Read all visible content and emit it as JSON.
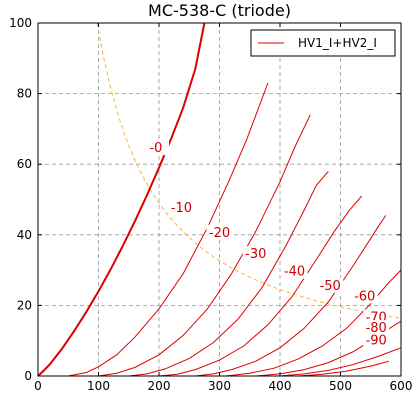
{
  "chart_data": {
    "type": "line",
    "title": "MC-538-C (triode)",
    "xlabel": "",
    "ylabel": "",
    "xlim": [
      0,
      600
    ],
    "ylim": [
      0,
      100
    ],
    "x_ticks": [
      0,
      100,
      200,
      300,
      400,
      500,
      600
    ],
    "y_ticks": [
      0,
      20,
      40,
      60,
      80,
      100
    ],
    "grid": true,
    "legend": {
      "position": "top-right",
      "entries": [
        "HV1_I+HV2_I"
      ]
    },
    "colors": {
      "curves": "#dd0000",
      "dissipation": "#f0b840",
      "grid": "#9a9a9a"
    },
    "series": [
      {
        "label": "-0",
        "label_at": [
          195,
          64
        ],
        "points": [
          [
            0,
            0
          ],
          [
            10,
            1.6
          ],
          [
            20,
            3.4
          ],
          [
            40,
            7.8
          ],
          [
            60,
            12.8
          ],
          [
            80,
            18.2
          ],
          [
            100,
            24
          ],
          [
            120,
            30.2
          ],
          [
            140,
            36.8
          ],
          [
            160,
            43.8
          ],
          [
            180,
            51.2
          ],
          [
            200,
            59
          ],
          [
            220,
            67.2
          ],
          [
            240,
            76
          ],
          [
            260,
            87
          ],
          [
            275,
            100
          ]
        ]
      },
      {
        "label": "-10",
        "label_at": [
          237,
          47
        ],
        "points": [
          [
            50,
            0
          ],
          [
            80,
            1
          ],
          [
            100,
            2.6
          ],
          [
            130,
            6
          ],
          [
            160,
            11
          ],
          [
            200,
            19
          ],
          [
            240,
            29
          ],
          [
            280,
            42
          ],
          [
            315,
            55
          ],
          [
            345,
            67
          ],
          [
            380,
            83
          ]
        ]
      },
      {
        "label": "-20",
        "label_at": [
          300,
          40
        ],
        "points": [
          [
            100,
            0
          ],
          [
            130,
            0.8
          ],
          [
            160,
            2.4
          ],
          [
            200,
            6
          ],
          [
            240,
            11.5
          ],
          [
            280,
            19
          ],
          [
            320,
            29
          ],
          [
            360,
            41
          ],
          [
            400,
            55
          ],
          [
            425,
            65
          ],
          [
            450,
            74
          ]
        ]
      },
      {
        "label": "-30",
        "label_at": [
          360,
          34
        ],
        "points": [
          [
            150,
            0
          ],
          [
            180,
            0.6
          ],
          [
            210,
            2
          ],
          [
            250,
            5
          ],
          [
            290,
            9.5
          ],
          [
            330,
            16
          ],
          [
            370,
            25
          ],
          [
            410,
            37
          ],
          [
            440,
            47
          ],
          [
            460,
            54
          ],
          [
            480,
            58
          ]
        ]
      },
      {
        "label": "-40",
        "label_at": [
          424,
          29
        ],
        "points": [
          [
            200,
            0
          ],
          [
            230,
            0.5
          ],
          [
            260,
            1.8
          ],
          [
            300,
            4.5
          ],
          [
            340,
            8.5
          ],
          [
            380,
            14.5
          ],
          [
            420,
            22.5
          ],
          [
            460,
            33
          ],
          [
            490,
            41
          ],
          [
            515,
            47
          ],
          [
            535,
            51
          ]
        ]
      },
      {
        "label": "-50",
        "label_at": [
          483,
          25
        ],
        "points": [
          [
            260,
            0
          ],
          [
            290,
            0.6
          ],
          [
            320,
            1.8
          ],
          [
            360,
            4.2
          ],
          [
            400,
            8
          ],
          [
            440,
            13.5
          ],
          [
            480,
            21
          ],
          [
            520,
            31
          ],
          [
            550,
            39
          ],
          [
            565,
            43
          ],
          [
            575,
            45.5
          ]
        ]
      },
      {
        "label": "-60",
        "label_at": [
          540,
          22
        ],
        "points": [
          [
            310,
            0
          ],
          [
            350,
            0.8
          ],
          [
            390,
            2.2
          ],
          [
            430,
            4.8
          ],
          [
            470,
            8.5
          ],
          [
            510,
            13.5
          ],
          [
            550,
            20.5
          ],
          [
            580,
            26.5
          ],
          [
            600,
            30
          ]
        ]
      },
      {
        "label": "-70",
        "label_at": [
          559,
          16
        ],
        "points": [
          [
            360,
            0
          ],
          [
            400,
            0.6
          ],
          [
            440,
            1.8
          ],
          [
            480,
            3.8
          ],
          [
            520,
            6.8
          ],
          [
            560,
            11
          ],
          [
            590,
            14.5
          ],
          [
            600,
            15.5
          ]
        ]
      },
      {
        "label": "-80",
        "label_at": [
          559,
          13
        ],
        "points": [
          [
            400,
            0
          ],
          [
            440,
            0.6
          ],
          [
            480,
            1.6
          ],
          [
            520,
            3.2
          ],
          [
            560,
            5.4
          ],
          [
            600,
            8
          ]
        ]
      },
      {
        "label": "-90",
        "label_at": [
          559,
          9.5
        ],
        "points": [
          [
            430,
            0
          ],
          [
            470,
            0.5
          ],
          [
            510,
            1.4
          ],
          [
            550,
            2.8
          ],
          [
            580,
            4.2
          ]
        ]
      }
    ]
  }
}
